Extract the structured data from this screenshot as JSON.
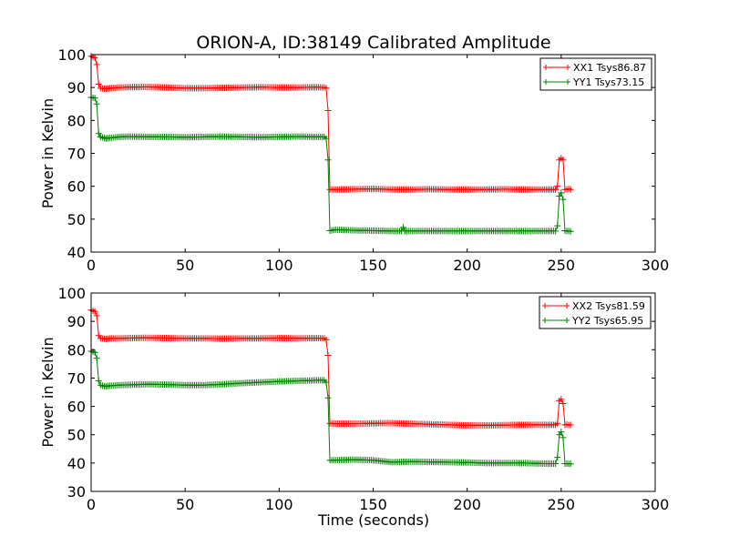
{
  "chart_data": [
    {
      "type": "line",
      "title": "ORION-A, ID:38149 Calibrated Amplitude",
      "xlabel": "",
      "ylabel": "Power in Kelvin",
      "xlim": [
        0,
        300
      ],
      "ylim": [
        40,
        100
      ],
      "xticks": [
        0,
        50,
        100,
        150,
        200,
        250,
        300
      ],
      "yticks": [
        40,
        50,
        60,
        70,
        80,
        90,
        100
      ],
      "legend_position": "top-right",
      "grid": false,
      "series": [
        {
          "name": "XX1 Tsys86.87",
          "color": "#ff0000",
          "marker": "+",
          "segments": [
            [
              0,
              99.5
            ],
            [
              2,
              99
            ],
            [
              3,
              97
            ],
            [
              4,
              91
            ],
            [
              5,
              89.8
            ],
            [
              8,
              89.6
            ],
            [
              10,
              89.8
            ],
            [
              15,
              90
            ],
            [
              20,
              90.1
            ],
            [
              30,
              90.2
            ],
            [
              40,
              90
            ],
            [
              50,
              89.8
            ],
            [
              60,
              89.8
            ],
            [
              70,
              89.9
            ],
            [
              80,
              90
            ],
            [
              90,
              90.1
            ],
            [
              100,
              90
            ],
            [
              110,
              90
            ],
            [
              120,
              90.1
            ],
            [
              124,
              90
            ],
            [
              125,
              89.8
            ],
            [
              126,
              83
            ],
            [
              127,
              59
            ],
            [
              130,
              59
            ],
            [
              140,
              59.1
            ],
            [
              150,
              59.2
            ],
            [
              160,
              59
            ],
            [
              170,
              59
            ],
            [
              180,
              59.1
            ],
            [
              190,
              59
            ],
            [
              200,
              59
            ],
            [
              210,
              59
            ],
            [
              220,
              59.1
            ],
            [
              230,
              59
            ],
            [
              240,
              59
            ],
            [
              247,
              59
            ],
            [
              248,
              60
            ],
            [
              249,
              68
            ],
            [
              250,
              68.5
            ],
            [
              251,
              68
            ],
            [
              252,
              59
            ],
            [
              253,
              59
            ],
            [
              254,
              59.2
            ],
            [
              255,
              59
            ]
          ]
        },
        {
          "name": "YY1 Tsys73.15",
          "color": "#008000",
          "marker": "+",
          "segments": [
            [
              0,
              87
            ],
            [
              2,
              86.8
            ],
            [
              3,
              85
            ],
            [
              4,
              76
            ],
            [
              5,
              75
            ],
            [
              8,
              74.5
            ],
            [
              10,
              74.7
            ],
            [
              15,
              75
            ],
            [
              20,
              75.1
            ],
            [
              30,
              75
            ],
            [
              40,
              75
            ],
            [
              50,
              74.9
            ],
            [
              60,
              75
            ],
            [
              70,
              75.1
            ],
            [
              80,
              75
            ],
            [
              90,
              74.9
            ],
            [
              100,
              75
            ],
            [
              110,
              75.1
            ],
            [
              120,
              75
            ],
            [
              124,
              75
            ],
            [
              125,
              74.5
            ],
            [
              126,
              68
            ],
            [
              127,
              46.5
            ],
            [
              130,
              46.8
            ],
            [
              140,
              46.6
            ],
            [
              150,
              46.5
            ],
            [
              160,
              46.4
            ],
            [
              165,
              46.4
            ],
            [
              166,
              47.5
            ],
            [
              167,
              46.4
            ],
            [
              170,
              46.4
            ],
            [
              180,
              46.4
            ],
            [
              190,
              46.4
            ],
            [
              200,
              46.4
            ],
            [
              210,
              46.4
            ],
            [
              220,
              46.4
            ],
            [
              230,
              46.4
            ],
            [
              240,
              46.4
            ],
            [
              247,
              46.4
            ],
            [
              248,
              48
            ],
            [
              249,
              57
            ],
            [
              250,
              58
            ],
            [
              251,
              56
            ],
            [
              252,
              46.5
            ],
            [
              253,
              46.4
            ],
            [
              254,
              46.4
            ],
            [
              255,
              46.3
            ]
          ]
        }
      ]
    },
    {
      "type": "line",
      "title": "",
      "xlabel": "Time (seconds)",
      "ylabel": "Power in Kelvin",
      "xlim": [
        0,
        300
      ],
      "ylim": [
        30,
        100
      ],
      "xticks": [
        0,
        50,
        100,
        150,
        200,
        250,
        300
      ],
      "yticks": [
        30,
        40,
        50,
        60,
        70,
        80,
        90,
        100
      ],
      "legend_position": "top-right",
      "grid": false,
      "series": [
        {
          "name": "XX2 Tsys81.59",
          "color": "#ff0000",
          "marker": "+",
          "segments": [
            [
              0,
              94
            ],
            [
              2,
              93.5
            ],
            [
              3,
              92
            ],
            [
              4,
              85
            ],
            [
              5,
              84
            ],
            [
              8,
              83.8
            ],
            [
              10,
              84
            ],
            [
              15,
              84
            ],
            [
              20,
              84.1
            ],
            [
              30,
              84.2
            ],
            [
              40,
              84.1
            ],
            [
              50,
              84
            ],
            [
              60,
              84
            ],
            [
              70,
              83.9
            ],
            [
              80,
              84
            ],
            [
              90,
              84
            ],
            [
              100,
              84.1
            ],
            [
              110,
              84
            ],
            [
              120,
              84.1
            ],
            [
              124,
              84
            ],
            [
              125,
              83.5
            ],
            [
              126,
              78
            ],
            [
              127,
              54
            ],
            [
              130,
              53.9
            ],
            [
              140,
              53.9
            ],
            [
              150,
              54
            ],
            [
              160,
              54.1
            ],
            [
              170,
              53.9
            ],
            [
              180,
              53.7
            ],
            [
              190,
              53.5
            ],
            [
              200,
              53.3
            ],
            [
              210,
              53.3
            ],
            [
              220,
              53.4
            ],
            [
              230,
              53.5
            ],
            [
              240,
              53.5
            ],
            [
              247,
              53.5
            ],
            [
              248,
              54
            ],
            [
              249,
              62
            ],
            [
              250,
              62.5
            ],
            [
              251,
              61
            ],
            [
              252,
              53.5
            ],
            [
              253,
              53.6
            ],
            [
              254,
              53.4
            ],
            [
              255,
              53.5
            ]
          ]
        },
        {
          "name": "YY2 Tsys65.95",
          "color": "#008000",
          "marker": "+",
          "segments": [
            [
              0,
              79.5
            ],
            [
              2,
              79
            ],
            [
              3,
              77
            ],
            [
              4,
              69
            ],
            [
              5,
              67.5
            ],
            [
              8,
              67
            ],
            [
              10,
              67.3
            ],
            [
              15,
              67.5
            ],
            [
              20,
              67.6
            ],
            [
              30,
              67.8
            ],
            [
              40,
              67.7
            ],
            [
              50,
              67.5
            ],
            [
              60,
              67.5
            ],
            [
              70,
              67.8
            ],
            [
              80,
              68.2
            ],
            [
              90,
              68.5
            ],
            [
              100,
              68.8
            ],
            [
              110,
              69
            ],
            [
              120,
              69.2
            ],
            [
              124,
              69.2
            ],
            [
              125,
              68.5
            ],
            [
              126,
              63
            ],
            [
              127,
              41
            ],
            [
              130,
              41
            ],
            [
              140,
              41.2
            ],
            [
              150,
              41
            ],
            [
              160,
              40.3
            ],
            [
              170,
              40.5
            ],
            [
              180,
              40.4
            ],
            [
              190,
              40.3
            ],
            [
              200,
              40.2
            ],
            [
              210,
              40
            ],
            [
              220,
              40
            ],
            [
              230,
              40
            ],
            [
              240,
              39.8
            ],
            [
              247,
              39.8
            ],
            [
              248,
              42
            ],
            [
              249,
              50
            ],
            [
              250,
              51
            ],
            [
              251,
              49
            ],
            [
              252,
              39.8
            ],
            [
              253,
              39.8
            ],
            [
              254,
              39.7
            ],
            [
              255,
              39.7
            ]
          ]
        }
      ]
    }
  ]
}
